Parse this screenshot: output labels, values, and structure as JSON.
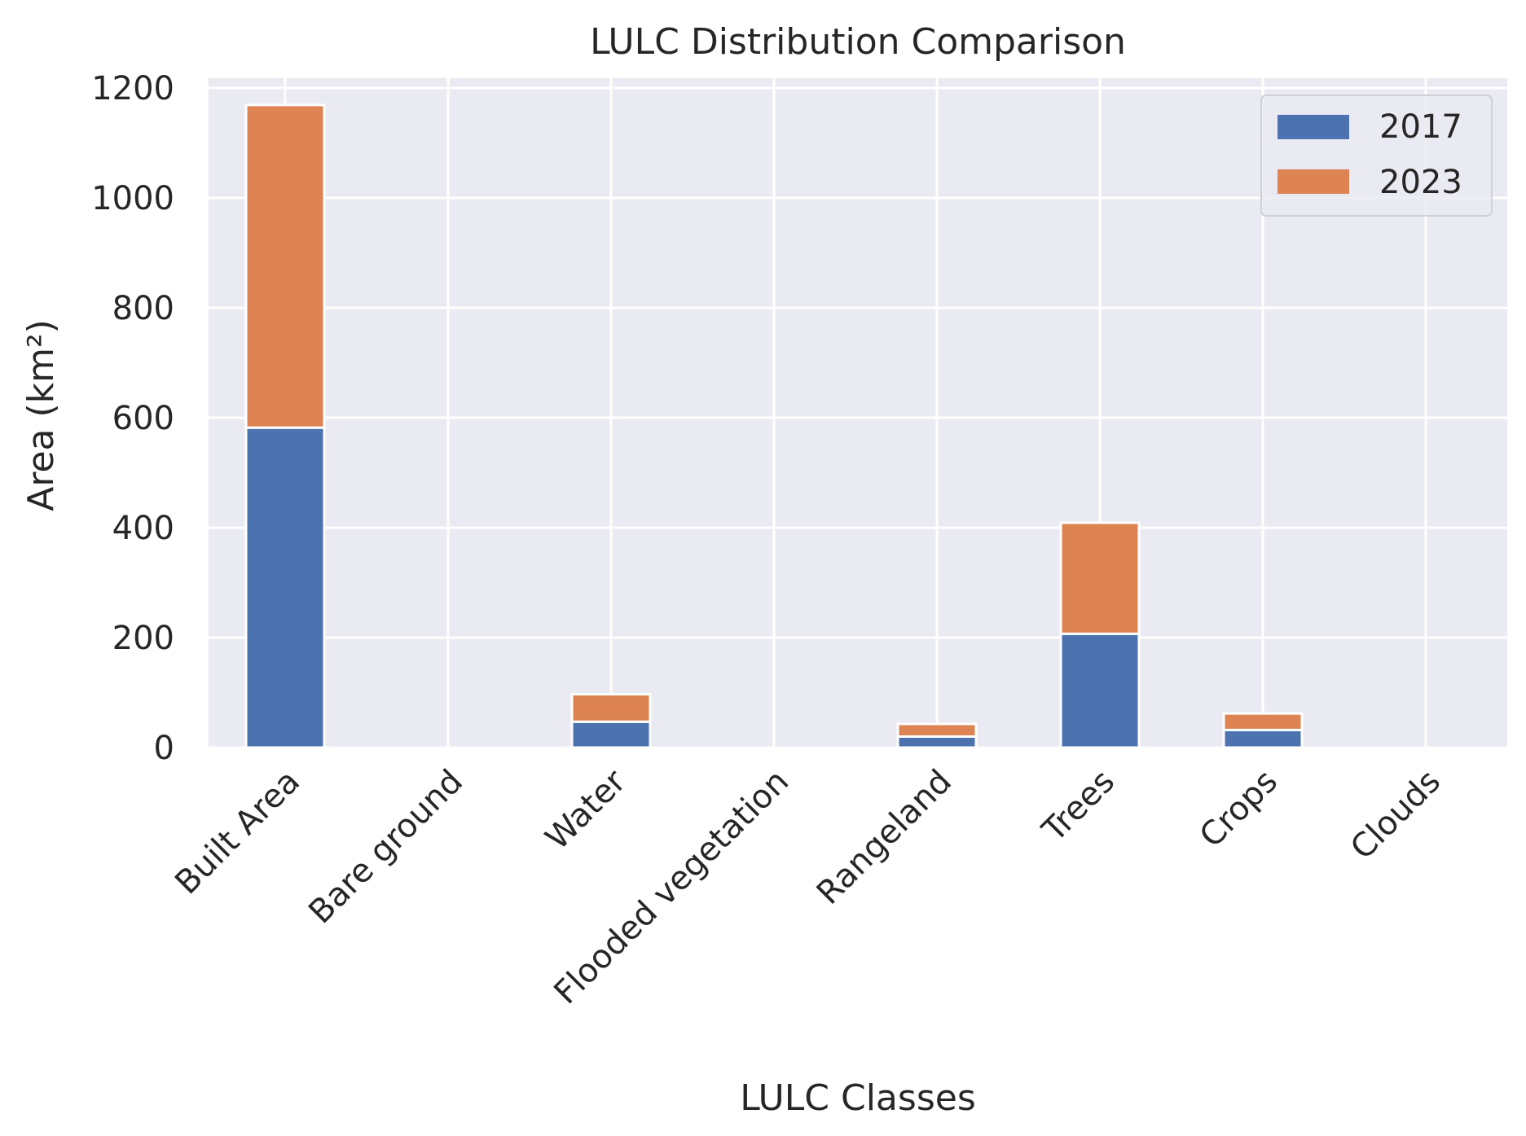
{
  "chart_data": {
    "type": "bar",
    "stacked": true,
    "title": "LULC Distribution Comparison",
    "xlabel": "LULC Classes",
    "ylabel": "Area (km²)",
    "categories": [
      "Built Area",
      "Bare ground",
      "Water",
      "Flooded vegetation",
      "Rangeland",
      "Trees",
      "Crops",
      "Clouds"
    ],
    "series": [
      {
        "name": "2017",
        "color": "#4c72b0",
        "values": [
          582,
          0,
          47,
          0,
          20,
          207,
          32,
          0
        ]
      },
      {
        "name": "2023",
        "color": "#dd8452",
        "values": [
          587,
          0,
          50,
          0,
          23,
          202,
          30,
          0
        ]
      }
    ],
    "ylim": [
      0,
      1220
    ],
    "yticks": [
      0,
      200,
      400,
      600,
      800,
      1000,
      1200
    ],
    "grid": true,
    "legend": "top-right",
    "background_color": "#eaeaf2"
  }
}
